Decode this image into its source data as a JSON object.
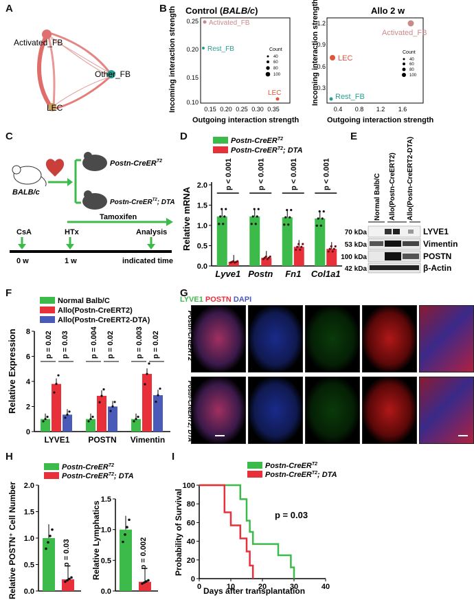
{
  "panels": {
    "A": "A",
    "B": "B",
    "C": "C",
    "D": "D",
    "E": "E",
    "F": "F",
    "G": "G",
    "H": "H",
    "I": "I"
  },
  "panelA": {
    "nodes": [
      "Activated_FB",
      "Other_FB",
      "LEC"
    ],
    "colors": {
      "edge": "#d9534f",
      "activated": "#e07070",
      "other": "#1f9e8e",
      "lec": "#b0a070"
    }
  },
  "panelB": {
    "left": {
      "title_pre": "Control (",
      "title_it": "BALB/c",
      "title_post": ")",
      "xlabel": "Outgoing interaction strength",
      "ylabel": "Incoming interaction strength",
      "xticks": [
        "0.15",
        "0.20",
        "0.25",
        "0.30",
        "0.35"
      ],
      "yticks": [
        "0.10",
        "0.15",
        "0.20",
        "0.25"
      ],
      "points": [
        {
          "label": "Activated_FB",
          "color": "#c98a8a"
        },
        {
          "label": "Rest_FB",
          "color": "#2a9d8f"
        },
        {
          "label": "LEC",
          "color": "#e0553a"
        }
      ],
      "legend_title": "Count",
      "legend_values": [
        "40",
        "60",
        "80",
        "100"
      ]
    },
    "right": {
      "title": "Allo 2 w",
      "xlabel": "Outgoing interaction strength",
      "ylabel": "Incoming interaction strength",
      "xticks": [
        "0.4",
        "0.8",
        "1.2",
        "1.6"
      ],
      "yticks": [
        "0.3",
        "0.6",
        "0.9",
        "1.2"
      ],
      "points": [
        {
          "label": "Activated_FB",
          "color": "#c98a8a"
        },
        {
          "label": "LEC",
          "color": "#e0553a"
        },
        {
          "label": "Rest_FB",
          "color": "#2a9d8f"
        }
      ],
      "legend_title": "Count",
      "legend_values": [
        "40",
        "60",
        "80",
        "100"
      ]
    }
  },
  "panelC": {
    "mouse_label": "BALB/c",
    "recipient1": "Postn-CreER",
    "recipient1_sup": "T2",
    "recipient2": "Postn-CreER",
    "recipient2_sup": "T2",
    "recipient2_suffix": "; DTA",
    "tamoxifen": "Tamoxifen",
    "events": [
      "CsA",
      "HTx",
      "Analysis"
    ],
    "times": [
      "0 w",
      "1 w",
      "indicated time"
    ]
  },
  "panelD": {
    "legend": [
      {
        "label": "Postn-CreER",
        "sup": "T2",
        "suffix": "",
        "color": "#3dbb4a"
      },
      {
        "label": "Postn-CreER",
        "sup": "T2",
        "suffix": "; DTA",
        "color": "#e8303a"
      }
    ],
    "ylabel": "Relative mRNA",
    "yticks": [
      "0.0",
      "0.5",
      "1.0",
      "1.5",
      "2.0"
    ],
    "genes": [
      "Lyve1",
      "Postn",
      "Fn1",
      "Col1a1"
    ],
    "pvals": [
      "p < 0.001",
      "p < 0.001",
      "p < 0.001",
      "p < 0.001"
    ]
  },
  "chart_data": [
    {
      "type": "bar",
      "panel": "D",
      "categories": [
        "Lyve1",
        "Postn",
        "Fn1",
        "Col1a1"
      ],
      "series": [
        {
          "name": "Postn-CreERT2",
          "values": [
            1.22,
            1.22,
            1.2,
            1.17
          ]
        },
        {
          "name": "Postn-CreERT2; DTA",
          "values": [
            0.1,
            0.2,
            0.47,
            0.42
          ]
        }
      ],
      "ylabel": "Relative mRNA",
      "ylim": [
        0,
        2.0
      ]
    },
    {
      "type": "bar",
      "panel": "F",
      "categories": [
        "LYVE1",
        "POSTN",
        "Vimentin"
      ],
      "series": [
        {
          "name": "Normal Balb/C",
          "values": [
            1.0,
            1.0,
            1.0
          ]
        },
        {
          "name": "Allo(Postn-CreERT2)",
          "values": [
            3.8,
            2.85,
            4.6
          ]
        },
        {
          "name": "Allo(Postn-CreERT2-DTA)",
          "values": [
            1.35,
            2.0,
            2.9
          ]
        }
      ],
      "ylabel": "Relative Expression",
      "ylim": [
        0,
        8
      ]
    },
    {
      "type": "bar",
      "panel": "H-left",
      "categories": [
        "Postn-CreERT2",
        "Postn-CreERT2; DTA"
      ],
      "values": [
        1.0,
        0.22
      ],
      "ylabel": "Relative POSTN+ Cell Number",
      "ylim": [
        0,
        2.0
      ]
    },
    {
      "type": "bar",
      "panel": "H-right",
      "categories": [
        "Postn-CreERT2",
        "Postn-CreERT2; DTA"
      ],
      "values": [
        1.0,
        0.15
      ],
      "ylabel": "Relative Lymphatics",
      "ylim": [
        0,
        1.5
      ]
    },
    {
      "type": "line",
      "panel": "I",
      "xlabel": "Days after transplantation",
      "ylabel": "Probability of Survival",
      "xlim": [
        0,
        40
      ],
      "ylim": [
        0,
        100
      ],
      "series": [
        {
          "name": "Postn-CreERT2",
          "x": [
            0,
            13,
            13,
            15,
            15,
            16,
            16,
            17,
            17,
            25,
            25,
            29,
            29,
            30,
            30
          ],
          "y": [
            100,
            100,
            85,
            85,
            62,
            62,
            50,
            50,
            37,
            37,
            25,
            25,
            12,
            12,
            0
          ]
        },
        {
          "name": "Postn-CreERT2; DTA",
          "x": [
            0,
            8,
            8,
            10,
            10,
            13,
            13,
            15,
            15,
            16,
            16,
            17,
            17
          ],
          "y": [
            100,
            100,
            71,
            71,
            57,
            57,
            43,
            43,
            29,
            29,
            14,
            14,
            0
          ]
        }
      ]
    }
  ],
  "panelE": {
    "lanes": [
      "Normal Balb/C",
      "Allo(Postn-CreERT2)",
      "Allo(Postn-CreERT2-DTA)"
    ],
    "kda": [
      "70 kDa",
      "53 kDa",
      "100 kDa",
      "42 kDa"
    ],
    "proteins": [
      "LYVE1",
      "Vimentin",
      "POSTN",
      "β-Actin"
    ]
  },
  "panelF": {
    "legend": [
      {
        "label": "Normal Balb/C",
        "color": "#3dbb4a"
      },
      {
        "label": "Allo(Postn-CreERT2)",
        "color": "#e8303a"
      },
      {
        "label": "Allo(Postn-CreERT2-DTA)",
        "color": "#4a5ab8"
      }
    ],
    "ylabel": "Relative Expression",
    "yticks": [
      "0",
      "2",
      "4",
      "6",
      "8"
    ],
    "groups": [
      "LYVE1",
      "POSTN",
      "Vimentin"
    ],
    "pvals": [
      "p = 0.02",
      "p = 0.03",
      "p = 0.004",
      "p = 0.02",
      "p = 0.003",
      "p = 0.02"
    ]
  },
  "panelG": {
    "stain_lyve1": "LYVE1",
    "stain_postn": "POSTN",
    "stain_dapi": "DAPI",
    "row_top": "Postn-CreERT2",
    "row_bottom": "Postn-CreERT2; DTA"
  },
  "panelH": {
    "legend": [
      {
        "label": "Postn-CreER",
        "sup": "T2",
        "suffix": "",
        "color": "#3dbb4a"
      },
      {
        "label": "Postn-CreER",
        "sup": "T2",
        "suffix": "; DTA",
        "color": "#e8303a"
      }
    ],
    "left_ylabel": "Relative POSTN⁺ Cell Number",
    "left_yticks": [
      "0.0",
      "0.5",
      "1.0",
      "1.5",
      "2.0"
    ],
    "left_p": "p = 0.03",
    "right_ylabel": "Relative Lymphatics",
    "right_yticks": [
      "0.0",
      "0.5",
      "1.0",
      "1.5"
    ],
    "right_p": "p = 0.002"
  },
  "panelI": {
    "legend": [
      {
        "label": "Postn-CreER",
        "sup": "T2",
        "suffix": "",
        "color": "#3dbb4a"
      },
      {
        "label": "Postn-CreER",
        "sup": "T2",
        "suffix": "; DTA",
        "color": "#e8303a"
      }
    ],
    "ylabel": "Probability of Survival",
    "xlabel": "Days after transplantation",
    "yticks": [
      "0",
      "20",
      "40",
      "60",
      "80",
      "100"
    ],
    "xticks": [
      "0",
      "10",
      "20",
      "30",
      "40"
    ],
    "pval": "p = 0.03"
  }
}
